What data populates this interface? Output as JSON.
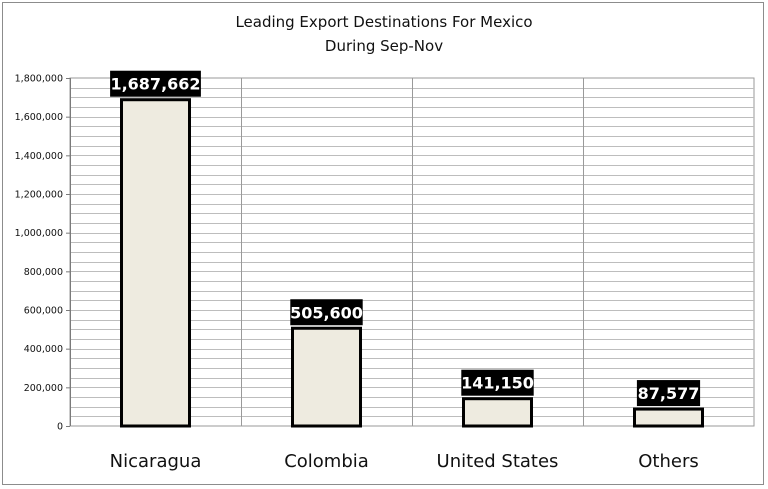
{
  "chart_data": {
    "type": "bar",
    "title": "Leading Export Destinations For Mexico",
    "subtitle": "During Sep-Nov",
    "categories": [
      "Nicaragua",
      "Colombia",
      "United States",
      "Others"
    ],
    "values": [
      1687662,
      505600,
      141150,
      87577
    ],
    "data_labels": [
      "1,687,662",
      "505,600",
      "141,150",
      "87,577"
    ],
    "ylim": [
      0,
      1800000
    ],
    "yticks": [
      0,
      200000,
      400000,
      600000,
      800000,
      1000000,
      1200000,
      1400000,
      1600000,
      1800000
    ],
    "ytick_labels": [
      "0",
      "200,000",
      "400,000",
      "600,000",
      "800,000",
      "1,000,000",
      "1,200,000",
      "1,400,000",
      "1,600,000",
      "1,800,000"
    ],
    "minor_step": 50000,
    "grid": true,
    "colors": {
      "bar_fill": "#eeebe0",
      "bar_stroke": "#000000",
      "label_bg": "#000000",
      "grid": "#bdbdbd"
    }
  }
}
